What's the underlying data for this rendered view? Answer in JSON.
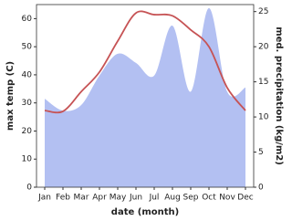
{
  "chart_data": {
    "type": "line",
    "xlabel": "date (month)",
    "ylabel": "max temp (C)",
    "y2label": "med. precipitation (kg/m2)",
    "categories": [
      "Jan",
      "Feb",
      "Mar",
      "Apr",
      "May",
      "Jun",
      "Jul",
      "Aug",
      "Sep",
      "Oct",
      "Nov",
      "Dec"
    ],
    "series": [
      {
        "name": "med. precipitation",
        "type": "area",
        "axis": "y2",
        "color": "#b3c0f2",
        "values": [
          12.6,
          10.9,
          11.7,
          15.9,
          19,
          17.7,
          15.9,
          23,
          13.6,
          25.5,
          13.6,
          14.2
        ]
      },
      {
        "name": "max temp",
        "type": "line",
        "axis": "y",
        "color": "#c65355",
        "values": [
          27.3,
          27,
          34,
          41,
          52,
          62,
          61.4,
          61,
          56,
          50,
          35.4,
          27.3
        ]
      }
    ],
    "ylim": [
      0,
      65
    ],
    "yticks": [
      0,
      10,
      20,
      30,
      40,
      50,
      60
    ],
    "y2lim": [
      0,
      26
    ],
    "y2ticks": [
      0,
      5,
      10,
      15,
      20,
      25
    ]
  }
}
